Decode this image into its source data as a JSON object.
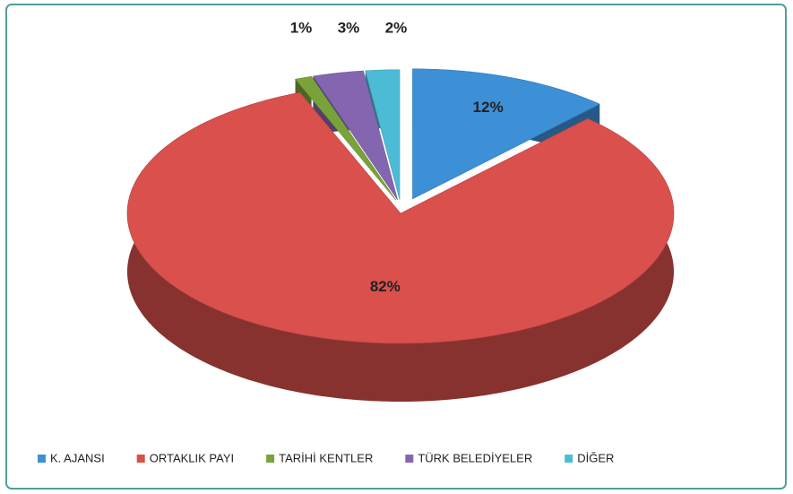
{
  "chart_data": {
    "type": "pie",
    "categories": [
      "K. AJANSI",
      "ORTAKLIK PAYI",
      "TARİHİ KENTLER",
      "TÜRK BELEDİYELER",
      "DİĞER"
    ],
    "values": [
      12,
      82,
      1,
      3,
      2
    ],
    "value_labels": [
      "12%",
      "82%",
      "1%",
      "3%",
      "2%"
    ],
    "colors": [
      "#3d8fd6",
      "#d9504c",
      "#79a33a",
      "#8466b0",
      "#4cbcd6"
    ],
    "legend": "bottom"
  }
}
